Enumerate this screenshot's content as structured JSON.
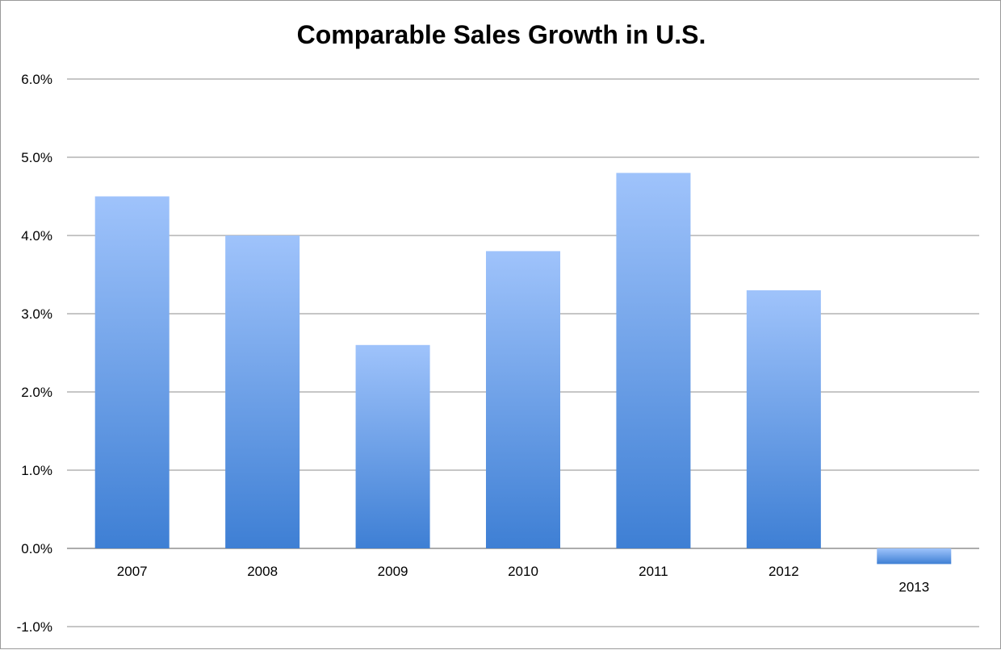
{
  "chart_data": {
    "type": "bar",
    "title": "Comparable Sales Growth in U.S.",
    "xlabel": "",
    "ylabel": "",
    "categories": [
      "2007",
      "2008",
      "2009",
      "2010",
      "2011",
      "2012",
      "2013"
    ],
    "values": [
      4.5,
      4.0,
      2.6,
      3.8,
      4.8,
      3.3,
      -0.2
    ],
    "ylim": [
      -1.0,
      6.0
    ],
    "yticks": [
      6.0,
      5.0,
      4.0,
      3.0,
      2.0,
      1.0,
      0.0,
      -1.0
    ],
    "ytick_labels": [
      "6.0%",
      "5.0%",
      "4.0%",
      "3.0%",
      "2.0%",
      "1.0%",
      "0.0%",
      "-1.0%"
    ],
    "grid": true,
    "legend": "none",
    "colors": {
      "bar_top": "#9fc3fb",
      "bar_bottom": "#3e7fd4",
      "grid": "#8c8c8c"
    }
  }
}
